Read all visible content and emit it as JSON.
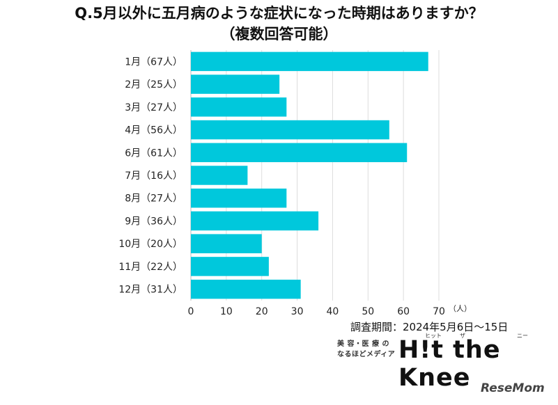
{
  "title": {
    "line1": "Q.5月以外に五月病のような症状になった時期はありますか？",
    "line2": "（複数回答可能）"
  },
  "chart_data": {
    "type": "bar",
    "orientation": "horizontal",
    "categories": [
      "1月（67人）",
      "2月（25人）",
      "3月（27人）",
      "4月（56人）",
      "6月（61人）",
      "7月（16人）",
      "8月（27人）",
      "9月（36人）",
      "10月（20人）",
      "11月（22人）",
      "12月（31人）"
    ],
    "values": [
      67,
      25,
      27,
      56,
      61,
      16,
      27,
      36,
      20,
      22,
      31
    ],
    "xlim": [
      0,
      70
    ],
    "xticks": [
      0,
      10,
      20,
      30,
      40,
      50,
      60,
      70
    ],
    "x_unit": "（人）",
    "bar_color": "#00c8dc",
    "grid": "vertical"
  },
  "note": "調査期間：2024年5月6日〜15日",
  "brand": {
    "tag_line1": "美 容・医 療 の",
    "tag_line2": "なるほどメディア",
    "logo": "H!t the Knee",
    "ruby_hit": "ヒット",
    "ruby_the": "ザ",
    "ruby_knee": "ニー"
  },
  "credit": "ReseMom"
}
